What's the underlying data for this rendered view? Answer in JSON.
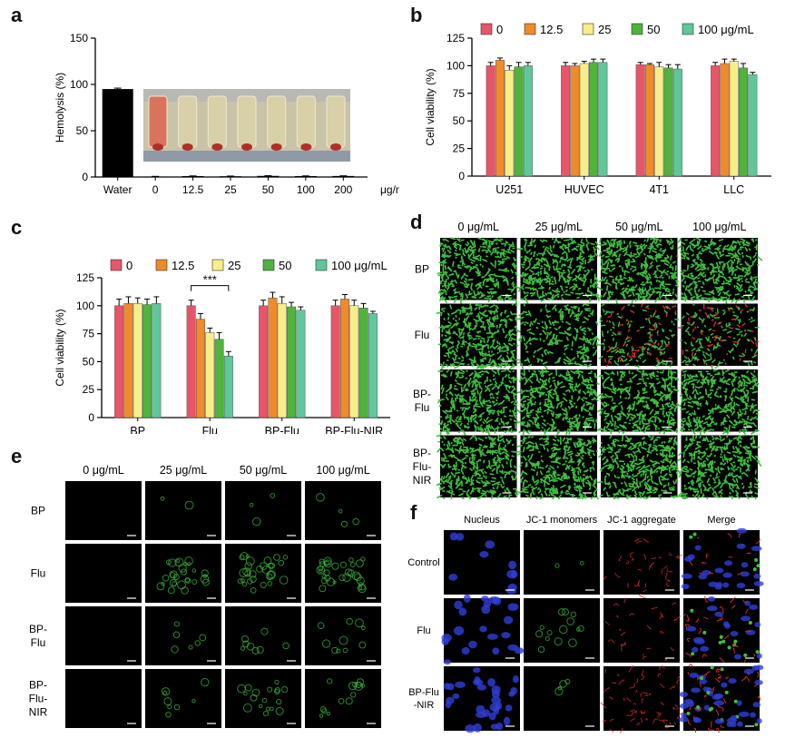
{
  "panels": {
    "a": "a",
    "b": "b",
    "c": "c",
    "d": "d",
    "e": "e",
    "f": "f"
  },
  "colors": {
    "c0": "#e8546a",
    "c12": "#f08a2a",
    "c25": "#f7ee8a",
    "c50": "#4fb33c",
    "c100": "#5fc79a",
    "green": "#3fbf3f",
    "red": "#d22a2a",
    "blue": "#2f3fd8",
    "black": "#000000"
  },
  "chart_data": [
    {
      "panel": "a",
      "type": "bar",
      "categories": [
        "Water",
        "0",
        "12.5",
        "25",
        "50",
        "100",
        "200"
      ],
      "unit_label": "μg/mL",
      "values": [
        95,
        0.5,
        1,
        0.8,
        1.2,
        1.0,
        1.1
      ],
      "errors": [
        1,
        0.2,
        0.2,
        0.2,
        0.2,
        0.2,
        0.2
      ],
      "ylabel": "Hemolysis (%)",
      "ylim": [
        0,
        150
      ],
      "yticks": [
        0,
        50,
        100,
        150
      ],
      "bar_color": "#000000"
    },
    {
      "panel": "b",
      "type": "bar",
      "categories": [
        "U251",
        "HUVEC",
        "4T1",
        "LLC"
      ],
      "ylabel": "Cell viability (%)",
      "ylim": [
        0,
        125
      ],
      "yticks": [
        0,
        25,
        50,
        75,
        100,
        125
      ],
      "legend": [
        "0",
        "12.5",
        "25",
        "50",
        "100 μg/mL"
      ],
      "series": [
        {
          "name": "0",
          "values": [
            100,
            100,
            101,
            100
          ],
          "errors": [
            3,
            3,
            2,
            3
          ]
        },
        {
          "name": "12.5",
          "values": [
            105,
            100,
            101,
            102
          ],
          "errors": [
            2,
            2,
            1,
            4
          ]
        },
        {
          "name": "25",
          "values": [
            96,
            102,
            99,
            104
          ],
          "errors": [
            4,
            2,
            4,
            2
          ]
        },
        {
          "name": "50",
          "values": [
            99,
            103,
            98,
            98
          ],
          "errors": [
            4,
            3,
            3,
            4
          ]
        },
        {
          "name": "100 μg/mL",
          "values": [
            100,
            103,
            97,
            92
          ],
          "errors": [
            3,
            3,
            4,
            2
          ]
        }
      ]
    },
    {
      "panel": "c",
      "type": "bar",
      "categories": [
        "BP",
        "Flu",
        "BP-Flu",
        "BP-Flu-NIR"
      ],
      "ylabel": "Cell viability (%)",
      "ylim": [
        0,
        125
      ],
      "yticks": [
        0,
        25,
        50,
        75,
        100,
        125
      ],
      "legend": [
        "0",
        "12.5",
        "25",
        "50",
        "100 μg/mL"
      ],
      "annotation": "***",
      "series": [
        {
          "name": "0",
          "values": [
            100,
            100,
            100,
            100
          ],
          "errors": [
            6,
            5,
            5,
            5
          ]
        },
        {
          "name": "12.5",
          "values": [
            102,
            88,
            107,
            106
          ],
          "errors": [
            6,
            5,
            5,
            4
          ]
        },
        {
          "name": "25",
          "values": [
            102,
            76,
            102,
            100
          ],
          "errors": [
            5,
            4,
            6,
            5
          ]
        },
        {
          "name": "50",
          "values": [
            101,
            70,
            99,
            98
          ],
          "errors": [
            5,
            6,
            4,
            4
          ]
        },
        {
          "name": "100 μg/mL",
          "values": [
            102,
            55,
            96,
            93
          ],
          "errors": [
            6,
            4,
            3,
            2
          ]
        }
      ]
    }
  ],
  "panel_a_photo": {
    "tubes": 7
  },
  "panel_d": {
    "cols": [
      "0 μg/mL",
      "25 μg/mL",
      "50 μg/mL",
      "100 μg/mL"
    ],
    "rows": [
      "BP",
      "Flu",
      "BP-\nFlu",
      "BP-\nFlu-\nNIR"
    ],
    "row_lines": [
      [
        "BP"
      ],
      [
        "Flu"
      ],
      [
        "BP-",
        "Flu"
      ],
      [
        "BP-",
        "Flu-",
        "NIR"
      ]
    ]
  },
  "panel_e": {
    "cols": [
      "0 μg/mL",
      "25 μg/mL",
      "50 μg/mL",
      "100 μg/mL"
    ],
    "row_lines": [
      [
        "BP"
      ],
      [
        "Flu"
      ],
      [
        "BP-",
        "Flu"
      ],
      [
        "BP-",
        "Flu-",
        "NIR"
      ]
    ]
  },
  "panel_f": {
    "cols": [
      "Nucleus",
      "JC-1 monomers",
      "JC-1 aggregate",
      "Merge"
    ],
    "row_lines": [
      [
        "Control"
      ],
      [
        "Flu"
      ],
      [
        "BP-Flu",
        "-NIR"
      ]
    ]
  }
}
